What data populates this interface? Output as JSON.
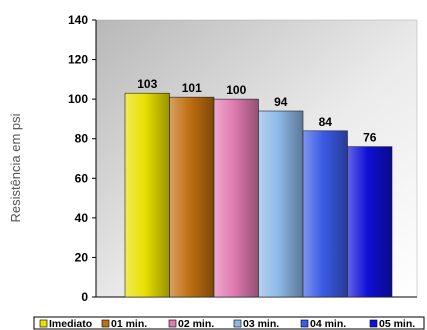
{
  "chart_data": {
    "type": "bar",
    "categories": [
      "Imediato",
      "01 min.",
      "02 min.",
      "03 min.",
      "04 min.",
      "05 min."
    ],
    "values": [
      103,
      101,
      100,
      94,
      84,
      76
    ],
    "colors": [
      "#e8e000",
      "#c06f10",
      "#e07ab0",
      "#8db8e6",
      "#3a5be6",
      "#0f10d6"
    ],
    "ylabel": "Resistência em psi",
    "xlabel": "",
    "ylim": [
      0,
      140
    ],
    "yticks": [
      0,
      20,
      40,
      60,
      80,
      100,
      120,
      140
    ],
    "grid": false,
    "legend": "bottom"
  }
}
